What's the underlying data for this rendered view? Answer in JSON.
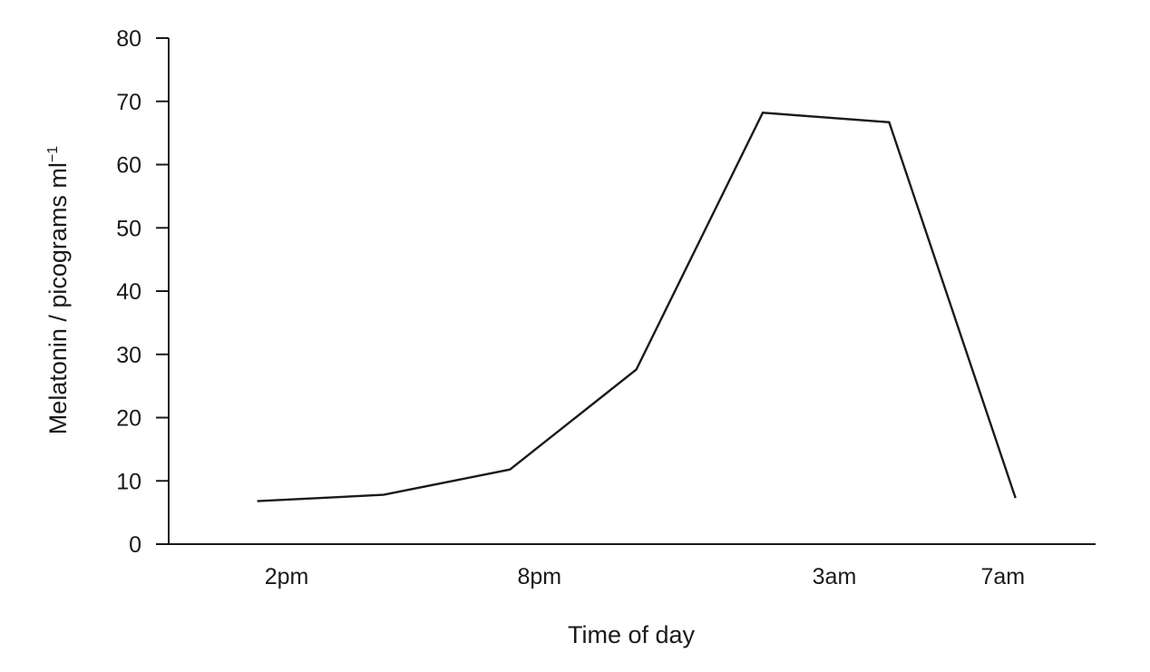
{
  "chart_data": {
    "type": "line",
    "title": "",
    "xlabel": "Time of day",
    "ylabel_main": "Melatonin / picograms ml",
    "ylabel_sup": "−1",
    "ylim": [
      0,
      80
    ],
    "yticks": [
      "0",
      "10",
      "20",
      "30",
      "40",
      "50",
      "60",
      "70",
      "80"
    ],
    "xticks": [
      {
        "label": "2pm",
        "x": 14
      },
      {
        "label": "8pm",
        "x": 20
      },
      {
        "label": "3am",
        "x": 27
      },
      {
        "label": "7am",
        "x": 31
      }
    ],
    "xlim": [
      11.2,
      33.2
    ],
    "grid": false,
    "legend": "none",
    "line_color": "#1a1a1a",
    "series": [
      {
        "x": [
          13.3,
          16.3,
          19.3,
          22.3,
          25.3,
          28.3,
          31.3
        ],
        "values": [
          6.8,
          7.8,
          11.8,
          27.6,
          68.2,
          66.7,
          7.3
        ]
      }
    ]
  }
}
